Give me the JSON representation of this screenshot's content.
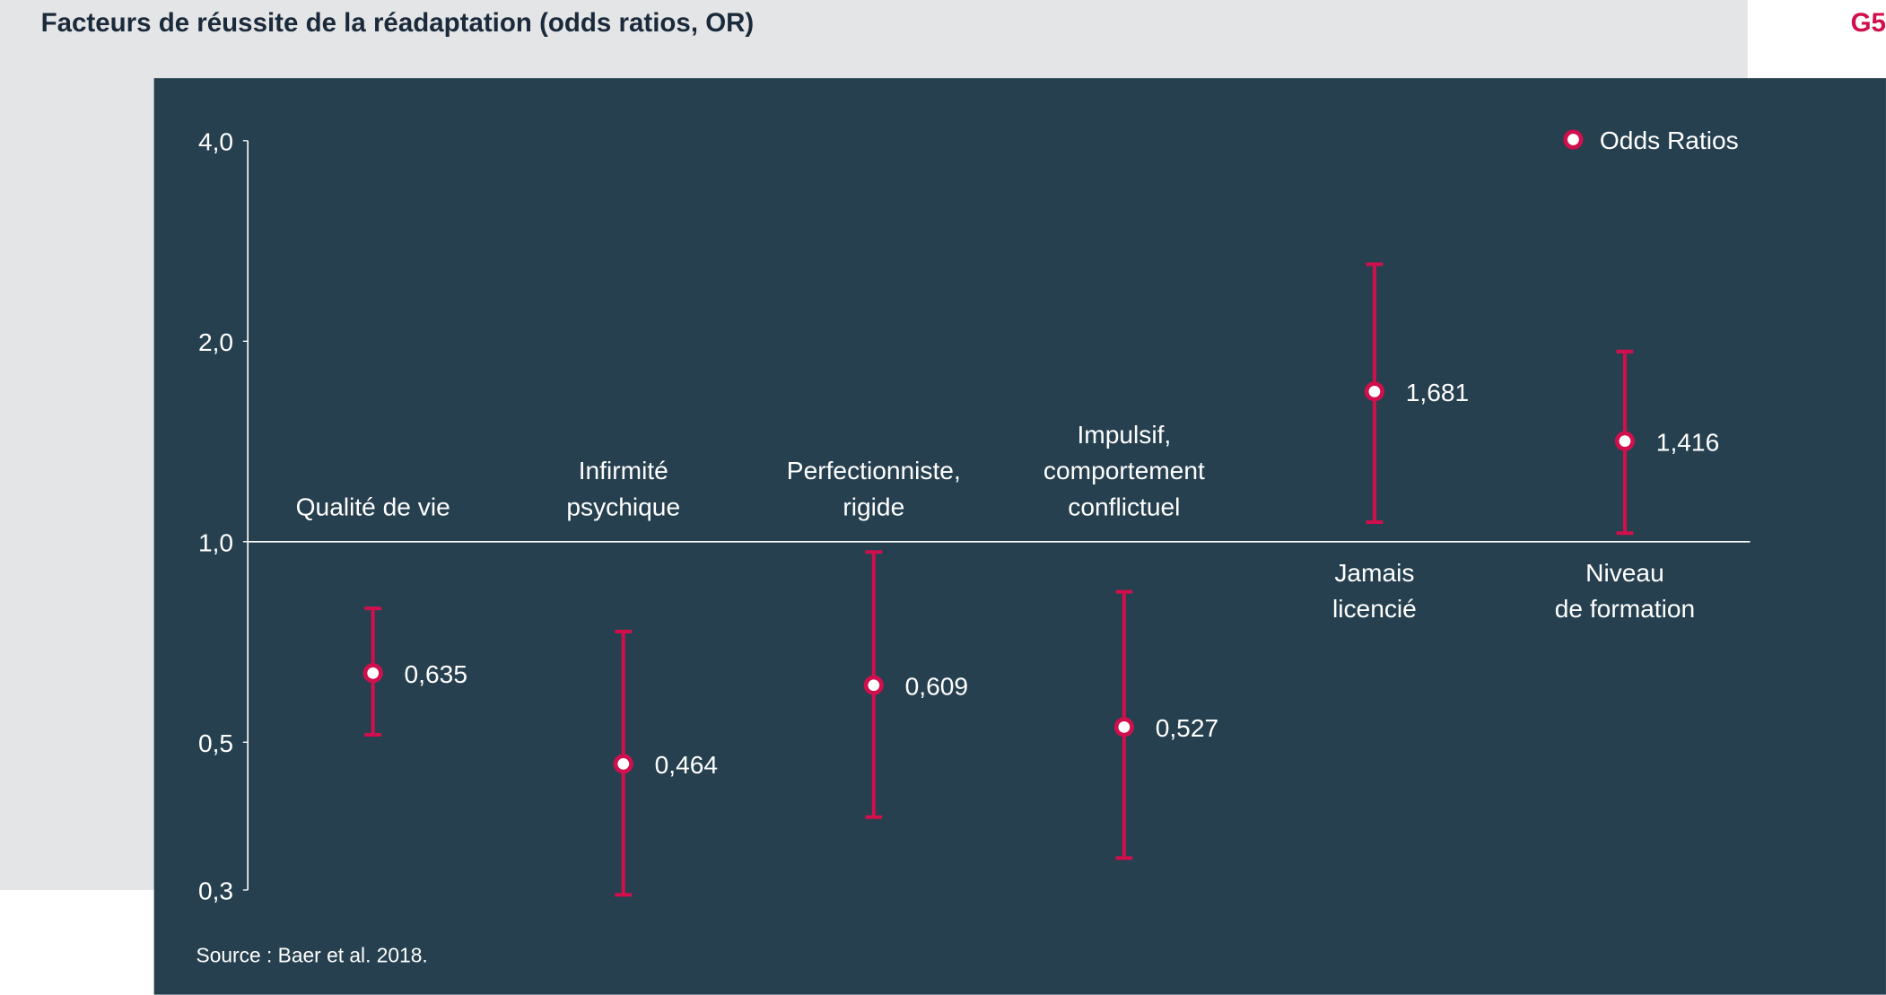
{
  "chart_data": {
    "type": "errorbar",
    "title": "Facteurs de réussite de la réadaptation (odds ratios, OR)",
    "figure_label": "G5",
    "source": "Source : Baer et al. 2018.",
    "categories": [
      "Qualité de vie",
      "Infirmité\npsychique",
      "Perfectionniste,\nrigide",
      "Impulsif,\ncomportement\nconflictuel",
      "Jamais\nlicencié",
      "Niveau\nde formation"
    ],
    "series": [
      {
        "name": "Odds Ratios",
        "color": "#d0104c",
        "values": [
          0.635,
          0.464,
          0.609,
          0.527,
          1.681,
          1.416
        ],
        "value_labels": [
          "0,635",
          "0,464",
          "0,609",
          "0,527",
          "1,681",
          "1,416"
        ],
        "ci_low": [
          0.513,
          0.295,
          0.386,
          0.335,
          1.07,
          1.03
        ],
        "ci_high": [
          0.794,
          0.733,
          0.965,
          0.841,
          2.61,
          1.93
        ]
      }
    ],
    "ylim": [
      0.3,
      4.0
    ],
    "yscale": "log",
    "yticks": [
      {
        "value": 4.0,
        "label": "4,0"
      },
      {
        "value": 2.0,
        "label": "2,0"
      },
      {
        "value": 1.0,
        "label": "1,0"
      },
      {
        "value": 0.5,
        "label": "0,5"
      },
      {
        "value": 0.3,
        "label": "0,3"
      }
    ],
    "reference_line": 1.0,
    "legend": "upper right"
  }
}
